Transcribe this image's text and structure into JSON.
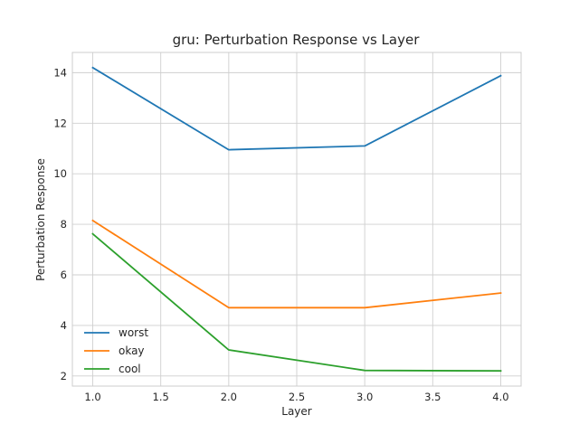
{
  "chart_data": {
    "type": "line",
    "title": "gru: Perturbation Response vs Layer",
    "xlabel": "Layer",
    "ylabel": "Perturbation Response",
    "xlim": [
      0.85,
      4.15
    ],
    "ylim": [
      1.6,
      14.8
    ],
    "xticks": [
      1.0,
      1.5,
      2.0,
      2.5,
      3.0,
      3.5,
      4.0
    ],
    "xtick_labels": [
      "1.0",
      "1.5",
      "2.0",
      "2.5",
      "3.0",
      "3.5",
      "4.0"
    ],
    "yticks": [
      2,
      4,
      6,
      8,
      10,
      12,
      14
    ],
    "ytick_labels": [
      "2",
      "4",
      "6",
      "8",
      "10",
      "12",
      "14"
    ],
    "grid": true,
    "legend_position": "lower-left",
    "x": [
      1.0,
      2.0,
      3.0,
      4.0
    ],
    "series": [
      {
        "name": "worst",
        "color": "#1f77b4",
        "values": [
          14.2,
          10.95,
          11.1,
          13.88
        ]
      },
      {
        "name": "okay",
        "color": "#ff7f0e",
        "values": [
          8.15,
          4.7,
          4.7,
          5.28
        ]
      },
      {
        "name": "cool",
        "color": "#2ca02c",
        "values": [
          7.62,
          3.03,
          2.22,
          2.2
        ]
      }
    ]
  }
}
